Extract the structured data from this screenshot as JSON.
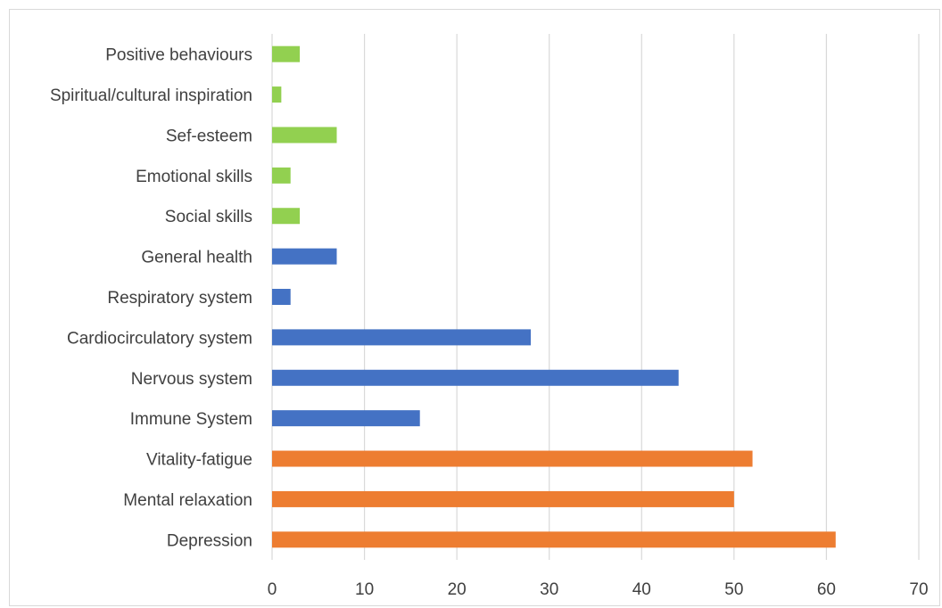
{
  "chart_data": {
    "type": "bar",
    "orientation": "horizontal",
    "title": "",
    "xlabel": "",
    "ylabel": "",
    "xlim": [
      0,
      70
    ],
    "xticks": [
      "0",
      "10",
      "20",
      "30",
      "40",
      "50",
      "60",
      "70"
    ],
    "grid": "vertical",
    "legend": "none",
    "categories": [
      "Positive behaviours",
      "Spiritual/cultural inspiration",
      "Sef-esteem",
      "Emotional skills",
      "Social skills",
      "General health",
      "Respiratory system",
      "Cardiocirculatory system",
      "Nervous system",
      "Immune System",
      "Vitality-fatigue",
      "Mental relaxation",
      "Depression"
    ],
    "values": [
      3,
      1,
      7,
      2,
      3,
      7,
      2,
      28,
      44,
      16,
      52,
      50,
      61
    ],
    "bar_colors": [
      "#92d050",
      "#92d050",
      "#92d050",
      "#92d050",
      "#92d050",
      "#4472c4",
      "#4472c4",
      "#4472c4",
      "#4472c4",
      "#4472c4",
      "#ed7d31",
      "#ed7d31",
      "#ed7d31"
    ],
    "grid_color": "#d9d9d9",
    "label_color": "#404040"
  }
}
